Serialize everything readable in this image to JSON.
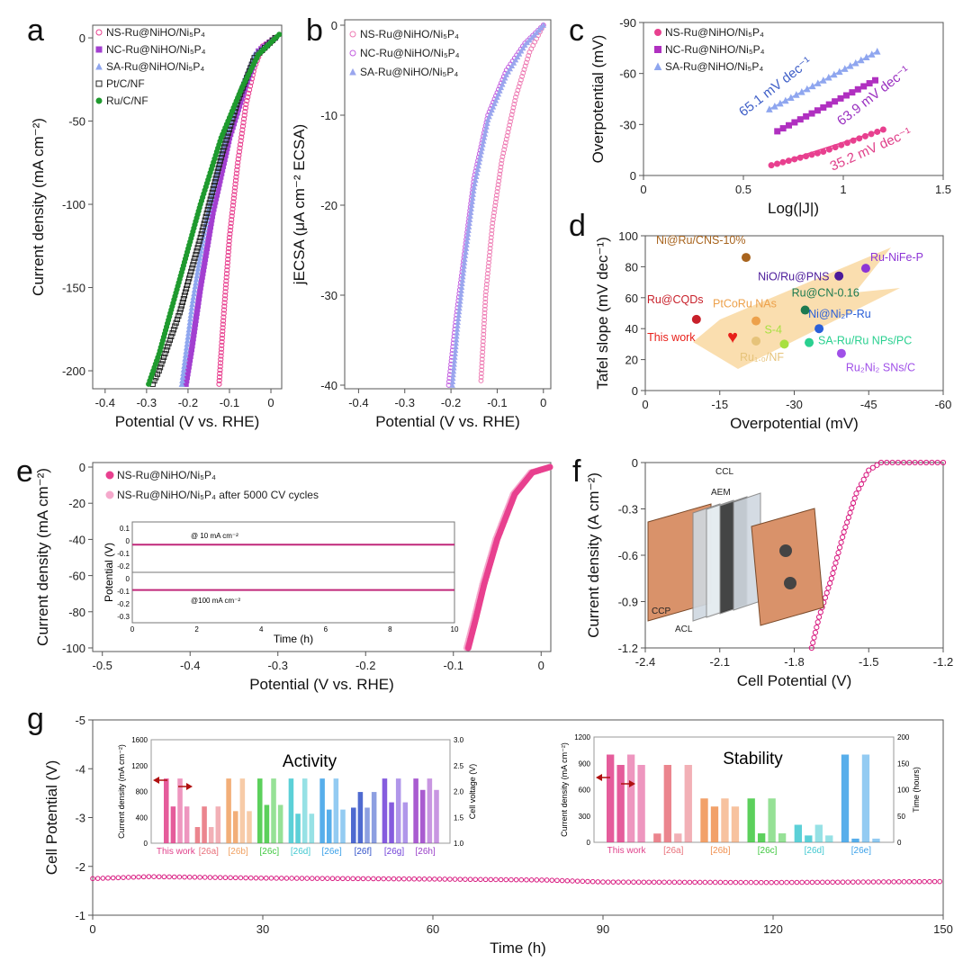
{
  "panel_labels": [
    "a",
    "b",
    "c",
    "d",
    "e",
    "f",
    "g"
  ],
  "chart_data": [
    {
      "id": "a",
      "type": "scatter",
      "xlabel": "Potential (V vs. RHE)",
      "ylabel": "Current density (mA cm⁻²)",
      "xlim": [
        -0.43,
        0.026
      ],
      "ylim": [
        -210.8,
        7.6
      ],
      "xticks": [
        -0.4,
        -0.3,
        -0.2,
        -0.1,
        0.0
      ],
      "yticks": [
        0,
        -50,
        -100,
        -150,
        -200
      ],
      "legend": "top-left",
      "series": [
        {
          "name": "NS-Ru@NiHO/Ni₅P₄",
          "color": "#e8408f",
          "marker": "circle-open",
          "points": [
            [
              0.01,
              0
            ],
            [
              -0.02,
              -5
            ],
            [
              -0.04,
              -18
            ],
            [
              -0.06,
              -40
            ],
            [
              -0.08,
              -75
            ],
            [
              -0.1,
              -120
            ],
            [
              -0.115,
              -170
            ],
            [
              -0.125,
              -208
            ]
          ]
        },
        {
          "name": "NC-Ru@NiHO/Ni₅P₄",
          "color": "#a33fd0",
          "marker": "square",
          "points": [
            [
              0.01,
              0
            ],
            [
              -0.03,
              -8
            ],
            [
              -0.06,
              -28
            ],
            [
              -0.1,
              -60
            ],
            [
              -0.14,
              -105
            ],
            [
              -0.17,
              -150
            ],
            [
              -0.19,
              -185
            ],
            [
              -0.205,
              -208
            ]
          ]
        },
        {
          "name": "SA-Ru@NiHO/Ni₅P₄",
          "color": "#8fa6ef",
          "marker": "triangle",
          "points": [
            [
              0.01,
              0
            ],
            [
              -0.04,
              -10
            ],
            [
              -0.08,
              -35
            ],
            [
              -0.12,
              -70
            ],
            [
              -0.16,
              -115
            ],
            [
              -0.19,
              -160
            ],
            [
              -0.215,
              -208
            ]
          ]
        },
        {
          "name": "Pt/C/NF",
          "color": "#222222",
          "marker": "square-open",
          "points": [
            [
              0.01,
              0
            ],
            [
              -0.04,
              -12
            ],
            [
              -0.08,
              -38
            ],
            [
              -0.12,
              -72
            ],
            [
              -0.17,
              -120
            ],
            [
              -0.22,
              -165
            ],
            [
              -0.27,
              -200
            ],
            [
              -0.285,
              -208
            ]
          ]
        },
        {
          "name": "Ru/C/NF",
          "color": "#1f9a2e",
          "marker": "circle",
          "points": [
            [
              0.02,
              2
            ],
            [
              -0.03,
              -10
            ],
            [
              -0.07,
              -30
            ],
            [
              -0.12,
              -60
            ],
            [
              -0.17,
              -100
            ],
            [
              -0.22,
              -145
            ],
            [
              -0.27,
              -190
            ],
            [
              -0.295,
              -208
            ]
          ]
        }
      ]
    },
    {
      "id": "b",
      "type": "scatter",
      "xlabel": "Potential (V vs. RHE)",
      "ylabel": "jECSA (μA cm⁻² ECSA)",
      "xlim": [
        -0.43,
        0.016
      ],
      "ylim": [
        -40.4,
        0.6
      ],
      "xticks": [
        -0.4,
        -0.3,
        -0.2,
        -0.1,
        0.0
      ],
      "yticks": [
        0,
        -10,
        -20,
        -30,
        -40
      ],
      "legend": "top-left",
      "series": [
        {
          "name": "NS-Ru@NiHO/Ni₅P₄",
          "color": "#ee7bb3",
          "marker": "circle-open",
          "points": [
            [
              0,
              0
            ],
            [
              -0.03,
              -3
            ],
            [
              -0.06,
              -8
            ],
            [
              -0.09,
              -15
            ],
            [
              -0.11,
              -22
            ],
            [
              -0.125,
              -30
            ],
            [
              -0.135,
              -39.5
            ]
          ]
        },
        {
          "name": "NC-Ru@NiHO/Ni₅P₄",
          "color": "#c25ee0",
          "marker": "circle-open",
          "points": [
            [
              0,
              0
            ],
            [
              -0.04,
              -2
            ],
            [
              -0.08,
              -5
            ],
            [
              -0.12,
              -10
            ],
            [
              -0.15,
              -17
            ],
            [
              -0.17,
              -25
            ],
            [
              -0.19,
              -33
            ],
            [
              -0.205,
              -40
            ]
          ]
        },
        {
          "name": "SA-Ru@NiHO/Ni₅P₄",
          "color": "#9aa6ee",
          "marker": "triangle",
          "points": [
            [
              0,
              0
            ],
            [
              -0.04,
              -2.2
            ],
            [
              -0.08,
              -5.5
            ],
            [
              -0.12,
              -10.5
            ],
            [
              -0.15,
              -18
            ],
            [
              -0.17,
              -26
            ],
            [
              -0.185,
              -33
            ],
            [
              -0.197,
              -40
            ]
          ]
        }
      ]
    },
    {
      "id": "c",
      "type": "scatter",
      "xlabel": "Log(|J|)",
      "ylabel": "Overpotential (mV)",
      "xlim": [
        0,
        1.5
      ],
      "ylim": [
        0,
        -90
      ],
      "xticks": [
        0.0,
        0.5,
        1.0,
        1.5
      ],
      "yticks": [
        0,
        -30,
        -60,
        -90
      ],
      "legend": "top-left",
      "series": [
        {
          "name": "NS-Ru@NiHO/Ni₅P₄",
          "color": "#e8408f",
          "marker": "circle",
          "slope_label": "35.2 mV dec⁻¹",
          "points": [
            [
              0.64,
              -6
            ],
            [
              0.9,
              -14
            ],
            [
              1.2,
              -27
            ]
          ]
        },
        {
          "name": "NC-Ru@NiHO/Ni₅P₄",
          "color": "#b030c0",
          "marker": "square",
          "slope_label": "63.9 mV dec⁻¹",
          "points": [
            [
              0.67,
              -26
            ],
            [
              0.9,
              -40
            ],
            [
              1.16,
              -56
            ]
          ]
        },
        {
          "name": "SA-Ru@NiHO/Ni₅P₄",
          "color": "#8fa6ef",
          "marker": "triangle",
          "slope_label": "65.1 mV dec⁻¹",
          "points": [
            [
              0.63,
              -39
            ],
            [
              0.9,
              -56
            ],
            [
              1.17,
              -73
            ]
          ]
        }
      ]
    },
    {
      "id": "d",
      "type": "scatter",
      "xlabel": "Overpotential (mV)",
      "ylabel": "Tafel slope (mV dec⁻¹)",
      "xlim": [
        0,
        -60
      ],
      "ylim": [
        0,
        100
      ],
      "xticks": [
        0,
        -15,
        -30,
        -45,
        -60
      ],
      "yticks": [
        0,
        20,
        40,
        60,
        80,
        100
      ],
      "points": [
        {
          "label": "Ni@Ru/CNS-10%",
          "x": -20.3,
          "y": 86,
          "color": "#a8641e"
        },
        {
          "label": "NiO/Ru@PNS",
          "x": -39,
          "y": 74,
          "color": "#4b1a9a"
        },
        {
          "label": "Ru-NiFe-P",
          "x": -44.4,
          "y": 79,
          "color": "#8d35d6"
        },
        {
          "label": "Ru@CQDs",
          "x": -10.3,
          "y": 46,
          "color": "#c8202a"
        },
        {
          "label": "PtCoRu NAs",
          "x": -22.3,
          "y": 45,
          "color": "#eda14b"
        },
        {
          "label": "Ru@CN-0.16",
          "x": -32.2,
          "y": 52,
          "color": "#1d7a50"
        },
        {
          "label": "Ni@Ni₂P-Ru",
          "x": -35,
          "y": 40,
          "color": "#2a5fd8"
        },
        {
          "label": "This work",
          "x": -17.6,
          "y": 35,
          "color": "#e8201a",
          "marker": "heart"
        },
        {
          "label": "Ru₁.₀/NF",
          "x": -22.3,
          "y": 32,
          "color": "#e6c37a"
        },
        {
          "label": "S-4",
          "x": -28,
          "y": 30,
          "color": "#a8e040"
        },
        {
          "label": "SA-Ru/Ru NPs/PC",
          "x": -33,
          "y": 31,
          "color": "#2ad090"
        },
        {
          "label": "Ru₂Ni₂ SNs/C",
          "x": -39.5,
          "y": 24,
          "color": "#a050e8"
        }
      ]
    },
    {
      "id": "e",
      "type": "scatter",
      "xlabel": "Potential (V vs. RHE)",
      "ylabel": "Current density (mA cm⁻²)",
      "xlim": [
        -0.511,
        0.011
      ],
      "ylim": [
        -102,
        2.5
      ],
      "xticks": [
        -0.5,
        -0.4,
        -0.3,
        -0.2,
        -0.1,
        0.0
      ],
      "yticks": [
        0,
        -20,
        -40,
        -60,
        -80,
        -100
      ],
      "legend": "top-left",
      "series": [
        {
          "name": "NS-Ru@NiHO/Ni₅P₄",
          "color": "#e8408f",
          "marker": "circle",
          "points": [
            [
              0.01,
              0
            ],
            [
              -0.01,
              -3
            ],
            [
              -0.03,
              -15
            ],
            [
              -0.05,
              -40
            ],
            [
              -0.065,
              -65
            ],
            [
              -0.075,
              -85
            ],
            [
              -0.083,
              -100
            ]
          ]
        },
        {
          "name": "NS-Ru@NiHO/Ni₅P₄ after 5000 CV cycles",
          "color": "#f5a9cc",
          "marker": "circle",
          "points": [
            [
              0.01,
              0
            ],
            [
              -0.012,
              -3
            ],
            [
              -0.032,
              -15
            ],
            [
              -0.052,
              -40
            ],
            [
              -0.067,
              -65
            ],
            [
              -0.077,
              -85
            ],
            [
              -0.085,
              -100
            ]
          ]
        }
      ],
      "inset": {
        "xlabel": "Time (h)",
        "ylabel": "Potential (V)",
        "xlim": [
          0,
          10
        ],
        "xticks": [
          0,
          2,
          4,
          6,
          8,
          10
        ],
        "top": {
          "label": "@ 10 mA cm⁻²",
          "ylim": [
            -0.25,
            0.15
          ],
          "yticks": [
            0.1,
            0.0,
            -0.1,
            -0.2
          ],
          "value": -0.03
        },
        "bottom": {
          "label": "@100 mA cm⁻²",
          "ylim": [
            -0.35,
            0.05
          ],
          "yticks": [
            0.0,
            -0.1,
            -0.2,
            -0.3
          ],
          "value": -0.09
        }
      }
    },
    {
      "id": "f",
      "type": "scatter",
      "xlabel": "Cell Potential (V)",
      "ylabel": "Current density (A cm⁻²)",
      "xlim": [
        -2.4,
        -1.2
      ],
      "ylim": [
        -1.2,
        0
      ],
      "xticks": [
        -2.4,
        -2.1,
        -1.8,
        -1.5,
        -1.2
      ],
      "yticks": [
        0.0,
        -0.3,
        -0.6,
        -0.9,
        -1.2
      ],
      "series": [
        {
          "color": "#d81b80",
          "marker": "circle-open",
          "points": [
            [
              -1.2,
              0
            ],
            [
              -1.45,
              0
            ],
            [
              -1.5,
              -0.05
            ],
            [
              -1.55,
              -0.2
            ],
            [
              -1.6,
              -0.45
            ],
            [
              -1.65,
              -0.75
            ],
            [
              -1.7,
              -1.0
            ],
            [
              -1.73,
              -1.2
            ]
          ]
        }
      ],
      "device_labels": [
        "CCL",
        "AEM",
        "CCP",
        "ACL"
      ]
    },
    {
      "id": "g",
      "type": "line",
      "xlabel": "Time (h)",
      "ylabel": "Cell Potential (V)",
      "xlim": [
        0,
        150
      ],
      "ylim": [
        -1,
        -5
      ],
      "xticks": [
        0,
        30,
        60,
        90,
        120,
        150
      ],
      "yticks": [
        -1,
        -2,
        -3,
        -4,
        -5
      ],
      "series": [
        {
          "color": "#d81b80",
          "points": [
            [
              0,
              -1.75
            ],
            [
              10,
              -1.79
            ],
            [
              30,
              -1.76
            ],
            [
              60,
              -1.74
            ],
            [
              80,
              -1.72
            ],
            [
              90,
              -1.68
            ],
            [
              120,
              -1.67
            ],
            [
              150,
              -1.69
            ]
          ]
        }
      ]
    },
    {
      "id": "g-activity",
      "type": "bar",
      "title": "Activity",
      "ylabel": "Current density (mA cm⁻²)",
      "y2label": "Cell voltage (V)",
      "ylim": [
        0,
        1600
      ],
      "y2lim": [
        1.0,
        3.0
      ],
      "yticks": [
        0,
        400,
        800,
        1200,
        1600
      ],
      "y2ticks": [
        "1.0",
        "1.5",
        "2.0",
        "2.5",
        "3.0"
      ],
      "categories": [
        "This work",
        "[26a]",
        "[26b]",
        "[26c]",
        "[26d]",
        "[26e]",
        "[26f]",
        "[26g]",
        "[26h]"
      ],
      "colors": [
        "#e0408a",
        "#e8707a",
        "#f0a060",
        "#40c840",
        "#40c8d0",
        "#3aa0e8",
        "#3050c8",
        "#7040d8",
        "#9a40c8"
      ],
      "series": [
        {
          "name": "Current density",
          "values": [
            1000,
            250,
            1000,
            1000,
            1000,
            1000,
            550,
            1000,
            1000
          ]
        },
        {
          "name": "Cell voltage",
          "values": [
            1.71,
            1.71,
            1.62,
            1.74,
            1.57,
            1.65,
            1.99,
            1.79,
            2.03
          ]
        }
      ]
    },
    {
      "id": "g-stability",
      "type": "bar",
      "title": "Stability",
      "ylabel": "Current density (mA cm⁻²)",
      "y2label": "Time (hours)",
      "ylim": [
        0,
        1200
      ],
      "y2lim": [
        0,
        200
      ],
      "yticks": [
        0,
        300,
        600,
        900,
        1200
      ],
      "y2ticks": [
        "0",
        "50",
        "100",
        "150",
        "200"
      ],
      "categories": [
        "This work",
        "[26a]",
        "[26b]",
        "[26c]",
        "[26d]",
        "[26e]"
      ],
      "colors": [
        "#e0408a",
        "#e8707a",
        "#f09050",
        "#40c840",
        "#40c8d0",
        "#3aa0e8"
      ],
      "series": [
        {
          "name": "Current density",
          "values": [
            1000,
            100,
            500,
            500,
            200,
            1000
          ]
        },
        {
          "name": "Time",
          "values": [
            147,
            147,
            68,
            17,
            13,
            7
          ]
        }
      ]
    }
  ]
}
